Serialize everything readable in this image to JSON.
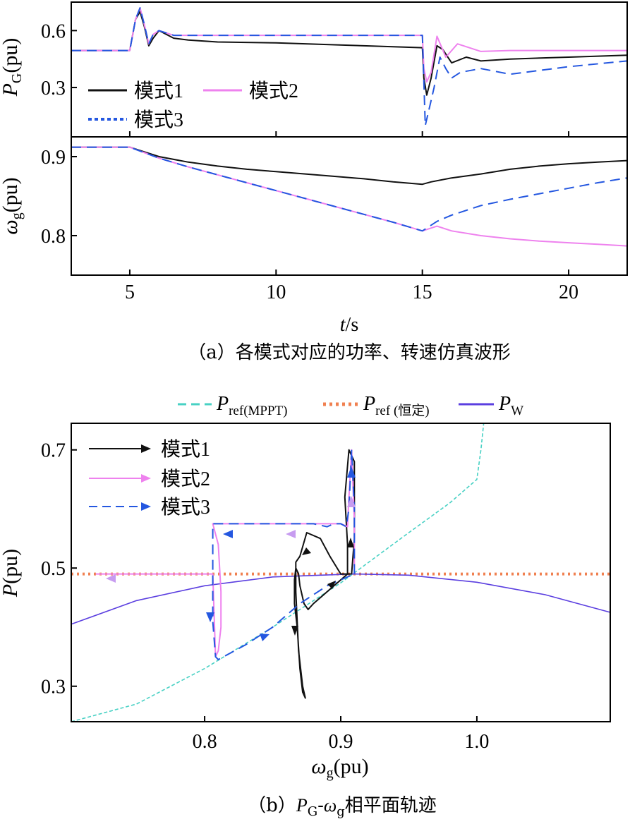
{
  "colors": {
    "mode1": "#111111",
    "mode2": "#ee82ee",
    "mode3": "#2457e0",
    "mppt": "#48d1c4",
    "const": "#f08050",
    "pw": "#5b3fe0"
  },
  "chart_data": [
    {
      "id": "a-top",
      "type": "line",
      "ylabel_main": "P",
      "ylabel_sub": "G",
      "ylabel_tail": "(pu)",
      "xlim": [
        3,
        22
      ],
      "ylim": [
        0.04,
        0.75
      ],
      "yticks": [
        0.3,
        0.6
      ],
      "yticklabels": [
        "0.3",
        "0.6"
      ],
      "legend": [
        {
          "label": "模式1",
          "style": "solid",
          "color": "#111111"
        },
        {
          "label": "模式2",
          "style": "solid",
          "color": "#ee82ee"
        },
        {
          "label": "模式3",
          "style": "dotted",
          "color": "#2457e0"
        }
      ],
      "series": [
        {
          "name": "模式1",
          "x": [
            3,
            5,
            5.2,
            5.35,
            5.5,
            5.65,
            5.8,
            6,
            6.5,
            7,
            8,
            10,
            12,
            14,
            15,
            15.05,
            15.15,
            15.3,
            15.5,
            15.7,
            16,
            16.5,
            17,
            18,
            20,
            22
          ],
          "y": [
            0.495,
            0.495,
            0.66,
            0.7,
            0.62,
            0.52,
            0.56,
            0.6,
            0.56,
            0.55,
            0.54,
            0.535,
            0.525,
            0.515,
            0.51,
            0.35,
            0.26,
            0.35,
            0.52,
            0.5,
            0.43,
            0.46,
            0.44,
            0.45,
            0.46,
            0.47
          ]
        },
        {
          "name": "模式2",
          "x": [
            3,
            5,
            5.2,
            5.35,
            5.5,
            5.65,
            5.8,
            6,
            6.5,
            8,
            10,
            12,
            14,
            15,
            15.05,
            15.15,
            15.3,
            15.5,
            15.8,
            16.2,
            17,
            18,
            20,
            22
          ],
          "y": [
            0.495,
            0.495,
            0.66,
            0.72,
            0.63,
            0.53,
            0.58,
            0.6,
            0.575,
            0.575,
            0.575,
            0.575,
            0.575,
            0.575,
            0.4,
            0.33,
            0.38,
            0.57,
            0.46,
            0.53,
            0.49,
            0.495,
            0.495,
            0.495
          ]
        },
        {
          "name": "模式3",
          "x": [
            3,
            5,
            5.2,
            5.35,
            5.5,
            5.65,
            5.8,
            6,
            6.5,
            8,
            10,
            12,
            14,
            15,
            15.1,
            15.25,
            15.4,
            15.6,
            15.8,
            16.0,
            16.3,
            17,
            18,
            20,
            22
          ],
          "y": [
            0.495,
            0.495,
            0.66,
            0.72,
            0.63,
            0.53,
            0.58,
            0.6,
            0.575,
            0.575,
            0.575,
            0.575,
            0.575,
            0.575,
            0.1,
            0.2,
            0.3,
            0.46,
            0.4,
            0.35,
            0.38,
            0.4,
            0.37,
            0.41,
            0.44
          ]
        }
      ]
    },
    {
      "id": "a-bottom",
      "type": "line",
      "ylabel_main": "ω",
      "ylabel_sub": "g",
      "ylabel_tail": "(pu)",
      "xlabel_main": "t",
      "xlabel_tail": "/s",
      "xlim": [
        3,
        22
      ],
      "ylim": [
        0.75,
        0.925
      ],
      "xticks": [
        5,
        10,
        15,
        20
      ],
      "xticklabels": [
        "5",
        "10",
        "15",
        "20"
      ],
      "yticks": [
        0.8,
        0.9
      ],
      "yticklabels": [
        "0.8",
        "0.9"
      ],
      "series": [
        {
          "name": "模式1",
          "x": [
            3,
            5,
            5.5,
            6,
            7,
            8,
            9,
            10,
            11,
            12,
            13,
            14,
            15,
            15.3,
            16,
            17,
            18,
            19,
            20,
            21,
            22
          ],
          "y": [
            0.912,
            0.912,
            0.906,
            0.9,
            0.893,
            0.888,
            0.884,
            0.881,
            0.878,
            0.875,
            0.872,
            0.868,
            0.865,
            0.868,
            0.873,
            0.878,
            0.884,
            0.888,
            0.891,
            0.893,
            0.895
          ]
        },
        {
          "name": "模式2",
          "x": [
            3,
            5,
            5.5,
            6,
            7,
            8,
            9,
            10,
            11,
            12,
            13,
            14,
            15,
            15.5,
            16,
            17,
            18,
            19,
            20,
            21,
            22
          ],
          "y": [
            0.912,
            0.912,
            0.905,
            0.898,
            0.887,
            0.877,
            0.867,
            0.857,
            0.847,
            0.837,
            0.827,
            0.817,
            0.806,
            0.812,
            0.806,
            0.8,
            0.796,
            0.793,
            0.791,
            0.789,
            0.787
          ]
        },
        {
          "name": "模式3",
          "x": [
            3,
            5,
            5.5,
            6,
            7,
            8,
            9,
            10,
            11,
            12,
            13,
            14,
            15,
            15.5,
            16,
            16.5,
            17,
            18,
            19,
            20,
            21,
            22
          ],
          "y": [
            0.912,
            0.912,
            0.905,
            0.898,
            0.887,
            0.877,
            0.867,
            0.857,
            0.847,
            0.837,
            0.827,
            0.817,
            0.806,
            0.818,
            0.826,
            0.832,
            0.838,
            0.846,
            0.853,
            0.86,
            0.867,
            0.873
          ]
        }
      ]
    },
    {
      "id": "b",
      "type": "line",
      "ylabel_main": "P",
      "ylabel_tail": "(pu)",
      "xlabel_main": "ω",
      "xlabel_sub": "g",
      "xlabel_tail": "(pu)",
      "xlim": [
        0.702,
        1.098
      ],
      "ylim": [
        0.24,
        0.745
      ],
      "xticks": [
        0.8,
        0.9,
        1.0
      ],
      "xticklabels": [
        "0.8",
        "0.9",
        "1.0"
      ],
      "yticks": [
        0.3,
        0.5,
        0.7
      ],
      "yticklabels": [
        "0.3",
        "0.5",
        "0.7"
      ],
      "top_legend": [
        {
          "main": "P",
          "sub": "ref(MPPT)",
          "style": "dashed",
          "color": "#48d1c4"
        },
        {
          "main": "P",
          "sub": "ref (恒定)",
          "style": "dotted",
          "color": "#f08050"
        },
        {
          "main": "P",
          "sub": "W",
          "style": "solid",
          "color": "#5b3fe0"
        }
      ],
      "legend": [
        {
          "label": "模式1",
          "style": "solid",
          "color": "#111111"
        },
        {
          "label": "模式2",
          "style": "solid",
          "color": "#ee82ee"
        },
        {
          "label": "模式3",
          "style": "dashed",
          "color": "#2457e0"
        }
      ],
      "series": [
        {
          "name": "P ref(MPPT)",
          "x": [
            0.7,
            0.75,
            0.8,
            0.85,
            0.9,
            0.95,
            0.98,
            1.0,
            1.003,
            1.005
          ],
          "y": [
            0.22,
            0.27,
            0.33,
            0.4,
            0.475,
            0.56,
            0.61,
            0.65,
            0.7,
            0.75
          ]
        },
        {
          "name": "P ref (恒定)",
          "x": [
            0.702,
            1.098
          ],
          "y": [
            0.49,
            0.49
          ]
        },
        {
          "name": "P W",
          "x": [
            0.7,
            0.75,
            0.8,
            0.85,
            0.91,
            0.95,
            1.0,
            1.05,
            1.1
          ],
          "y": [
            0.405,
            0.445,
            0.47,
            0.485,
            0.49,
            0.488,
            0.476,
            0.455,
            0.425
          ]
        },
        {
          "name": "模式1",
          "x": [
            0.908,
            0.91,
            0.91,
            0.906,
            0.903,
            0.905,
            0.905,
            0.9,
            0.892,
            0.885,
            0.875,
            0.87,
            0.867,
            0.867,
            0.869,
            0.872,
            0.874,
            0.872,
            0.87,
            0.868,
            0.866,
            0.866,
            0.867,
            0.869,
            0.87,
            0.873,
            0.876,
            0.88,
            0.885,
            0.89,
            0.895,
            0.9,
            0.905,
            0.908
          ],
          "y": [
            0.49,
            0.55,
            0.68,
            0.7,
            0.62,
            0.54,
            0.49,
            0.49,
            0.52,
            0.55,
            0.56,
            0.52,
            0.51,
            0.46,
            0.36,
            0.3,
            0.28,
            0.29,
            0.33,
            0.4,
            0.44,
            0.48,
            0.5,
            0.49,
            0.47,
            0.44,
            0.43,
            0.44,
            0.45,
            0.46,
            0.47,
            0.48,
            0.49,
            0.49
          ]
        },
        {
          "name": "模式2",
          "x": [
            0.91,
            0.91,
            0.908,
            0.906,
            0.905,
            0.9,
            0.895,
            0.89,
            0.88,
            0.87,
            0.85,
            0.83,
            0.81,
            0.806,
            0.81,
            0.812,
            0.812,
            0.81,
            0.808,
            0.806,
            0.72
          ],
          "y": [
            0.49,
            0.58,
            0.7,
            0.62,
            0.57,
            0.575,
            0.575,
            0.575,
            0.575,
            0.575,
            0.575,
            0.575,
            0.575,
            0.575,
            0.54,
            0.46,
            0.4,
            0.36,
            0.35,
            0.49,
            0.49
          ]
        },
        {
          "name": "模式3",
          "x": [
            0.91,
            0.91,
            0.908,
            0.906,
            0.904,
            0.9,
            0.895,
            0.89,
            0.88,
            0.86,
            0.84,
            0.82,
            0.806,
            0.806,
            0.806,
            0.808,
            0.81,
            0.83,
            0.85,
            0.87,
            0.89,
            0.91
          ],
          "y": [
            0.49,
            0.6,
            0.7,
            0.6,
            0.57,
            0.575,
            0.575,
            0.57,
            0.575,
            0.575,
            0.575,
            0.575,
            0.575,
            0.49,
            0.41,
            0.35,
            0.345,
            0.37,
            0.4,
            0.44,
            0.47,
            0.49
          ]
        }
      ]
    }
  ],
  "caption_a": "（a）各模式对应的功率、转速仿真波形",
  "caption_b_prefix": "（b）",
  "caption_b_p": "P",
  "caption_b_p_sub": "G",
  "caption_b_dash": "-",
  "caption_b_w": "ω",
  "caption_b_w_sub": "g",
  "caption_b_suffix": "相平面轨迹"
}
